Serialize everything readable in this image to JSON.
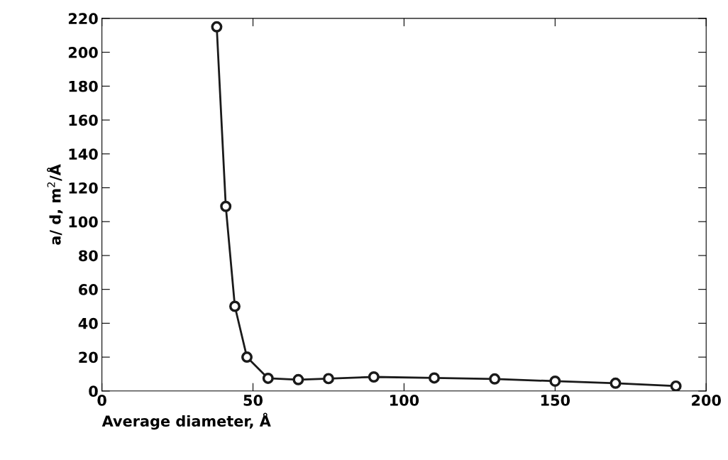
{
  "chart_data": {
    "type": "line",
    "xlabel": "Average diameter, Å",
    "ylabel": "a/ d, m$^{2}$/Å",
    "x": [
      38,
      41,
      44,
      48,
      55,
      65,
      75,
      90,
      110,
      130,
      150,
      170,
      190
    ],
    "series": [
      {
        "color": "#1a1a1a",
        "values": [
          215,
          109,
          50,
          20,
          7.5,
          6.7,
          7.3,
          8.3,
          7.7,
          7.1,
          5.8,
          4.6,
          2.9
        ]
      }
    ],
    "xlim": [
      0,
      200
    ],
    "xticks": [
      0,
      50,
      100,
      150,
      200
    ],
    "ylim": [
      0,
      220
    ],
    "yticks": [
      0,
      20,
      40,
      60,
      80,
      100,
      120,
      140,
      160,
      180,
      200,
      220
    ],
    "marker": "circle",
    "line_style": "solid",
    "grid": false,
    "legend": false
  }
}
